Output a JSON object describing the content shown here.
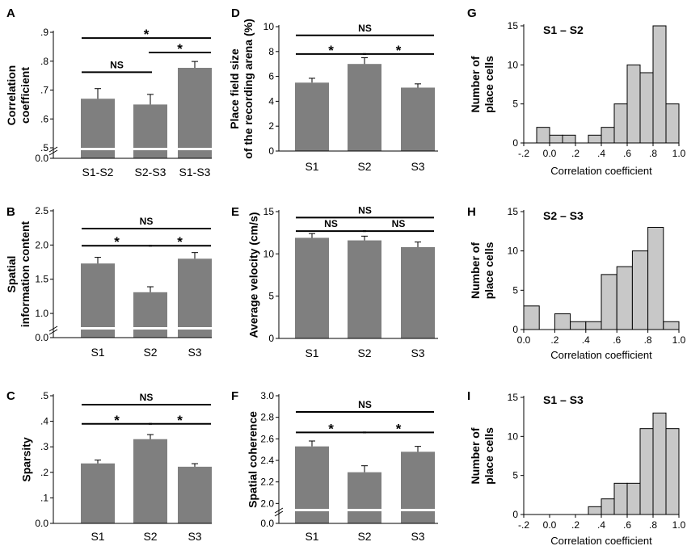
{
  "colors": {
    "bar": "#7f7f7f",
    "hist": "#c8c8c8",
    "axis": "#000000",
    "background": "#ffffff"
  },
  "chart_data": [
    {
      "id": "A",
      "type": "bar",
      "panel_label": "A",
      "ylabel": [
        "Correlation",
        "coefficient"
      ],
      "categories": [
        "S1-S2",
        "S2-S3",
        "S1-S3"
      ],
      "values": [
        0.67,
        0.65,
        0.777
      ],
      "errors": [
        0.035,
        0.035,
        0.022
      ],
      "ylim": [
        0.5,
        0.9
      ],
      "broken_axis": true,
      "break_base": "0.0",
      "yticks": [
        0.5,
        0.6,
        0.7,
        0.8,
        0.9
      ],
      "ytick_labels": [
        ".5",
        ".6",
        ".7",
        ".8",
        ".9"
      ],
      "significance": [
        {
          "from": 1,
          "to": 2,
          "label": "NS",
          "y": 0.762
        },
        {
          "from": 2,
          "to": 3,
          "label": "*",
          "y": 0.83
        },
        {
          "from": 1,
          "to": 3,
          "label": "*",
          "y": 0.88
        }
      ]
    },
    {
      "id": "B",
      "type": "bar",
      "panel_label": "B",
      "ylabel": [
        "Spatial",
        "information content"
      ],
      "categories": [
        "S1",
        "S2",
        "S3"
      ],
      "values": [
        1.73,
        1.31,
        1.8
      ],
      "errors": [
        0.09,
        0.08,
        0.09
      ],
      "ylim": [
        0.8,
        2.5
      ],
      "broken_axis": true,
      "break_base": "0.0",
      "yticks": [
        1.0,
        1.5,
        2.0,
        2.5
      ],
      "ytick_labels": [
        "1.0",
        "1.5",
        "2.0",
        "2.5"
      ],
      "significance": [
        {
          "from": 1,
          "to": 2,
          "label": "*",
          "y": 1.99
        },
        {
          "from": 2,
          "to": 3,
          "label": "*",
          "y": 1.99
        },
        {
          "from": 1,
          "to": 3,
          "label": "NS",
          "y": 2.24
        }
      ]
    },
    {
      "id": "C",
      "type": "bar",
      "panel_label": "C",
      "ylabel": [
        "Sparsity"
      ],
      "categories": [
        "S1",
        "S2",
        "S3"
      ],
      "values": [
        0.235,
        0.33,
        0.222
      ],
      "errors": [
        0.013,
        0.018,
        0.012
      ],
      "ylim": [
        0.0,
        0.5
      ],
      "broken_axis": false,
      "yticks": [
        0.0,
        0.1,
        0.2,
        0.3,
        0.4,
        0.5
      ],
      "ytick_labels": [
        "0.0",
        ".1",
        ".2",
        ".3",
        ".4",
        ".5"
      ],
      "significance": [
        {
          "from": 1,
          "to": 2,
          "label": "*",
          "y": 0.39
        },
        {
          "from": 2,
          "to": 3,
          "label": "*",
          "y": 0.39
        },
        {
          "from": 1,
          "to": 3,
          "label": "NS",
          "y": 0.465
        }
      ]
    },
    {
      "id": "D",
      "type": "bar",
      "panel_label": "D",
      "ylabel": [
        "Place field size",
        "of the recording arena (%)"
      ],
      "categories": [
        "S1",
        "S2",
        "S3"
      ],
      "values": [
        5.5,
        7.0,
        5.1
      ],
      "errors": [
        0.35,
        0.5,
        0.3
      ],
      "ylim": [
        0,
        10
      ],
      "broken_axis": false,
      "yticks": [
        0,
        2,
        4,
        6,
        8,
        10
      ],
      "ytick_labels": [
        "0",
        "2",
        "4",
        "6",
        "8",
        "10"
      ],
      "significance": [
        {
          "from": 1,
          "to": 2,
          "label": "*",
          "y": 7.8
        },
        {
          "from": 2,
          "to": 3,
          "label": "*",
          "y": 7.8
        },
        {
          "from": 1,
          "to": 3,
          "label": "NS",
          "y": 9.3
        }
      ]
    },
    {
      "id": "E",
      "type": "bar",
      "panel_label": "E",
      "ylabel": [
        "Average velocity (cm/s)"
      ],
      "categories": [
        "S1",
        "S2",
        "S3"
      ],
      "values": [
        11.9,
        11.6,
        10.8
      ],
      "errors": [
        0.5,
        0.5,
        0.6
      ],
      "ylim": [
        0,
        15
      ],
      "broken_axis": false,
      "yticks": [
        0,
        5,
        10,
        15
      ],
      "ytick_labels": [
        "0",
        "5",
        "10",
        "15"
      ],
      "significance": [
        {
          "from": 1,
          "to": 2,
          "label": "NS",
          "y": 12.7
        },
        {
          "from": 2,
          "to": 3,
          "label": "NS",
          "y": 12.7
        },
        {
          "from": 1,
          "to": 3,
          "label": "NS",
          "y": 14.3
        }
      ]
    },
    {
      "id": "F",
      "type": "bar",
      "panel_label": "F",
      "ylabel": [
        "Spatial coherence"
      ],
      "categories": [
        "S1",
        "S2",
        "S3"
      ],
      "values": [
        2.53,
        2.29,
        2.48
      ],
      "errors": [
        0.05,
        0.06,
        0.05
      ],
      "ylim": [
        1.95,
        3.0
      ],
      "broken_axis": true,
      "break_base": "0.0",
      "yticks": [
        2.0,
        2.2,
        2.4,
        2.6,
        2.8,
        3.0
      ],
      "ytick_labels": [
        "2.0",
        "2.2",
        "2.4",
        "2.6",
        "2.8",
        "3.0"
      ],
      "significance": [
        {
          "from": 1,
          "to": 2,
          "label": "*",
          "y": 2.66
        },
        {
          "from": 2,
          "to": 3,
          "label": "*",
          "y": 2.66
        },
        {
          "from": 1,
          "to": 3,
          "label": "NS",
          "y": 2.85
        }
      ]
    },
    {
      "id": "G",
      "type": "histogram",
      "panel_label": "G",
      "title": "S1 – S2",
      "xlabel": "Correlation coefficient",
      "ylabel": [
        "Number of",
        "place cells"
      ],
      "xlim": [
        -0.2,
        1.0
      ],
      "ylim": [
        0,
        15
      ],
      "bin_width": 0.1,
      "bins_start": [
        -0.1,
        0.0,
        0.1,
        0.2,
        0.3,
        0.4,
        0.5,
        0.6,
        0.7,
        0.8,
        0.9
      ],
      "counts": [
        2,
        1,
        1,
        0,
        1,
        2,
        5,
        10,
        9,
        15,
        5
      ],
      "xticks": [
        -0.2,
        0.0,
        0.2,
        0.4,
        0.6,
        0.8,
        1.0
      ],
      "xtick_labels": [
        "-.2",
        "0.0",
        ".2",
        ".4",
        ".6",
        ".8",
        "1.0"
      ],
      "yticks": [
        0,
        5,
        10,
        15
      ],
      "ytick_labels": [
        "0",
        "5",
        "10",
        "15"
      ]
    },
    {
      "id": "H",
      "type": "histogram",
      "panel_label": "H",
      "title": "S2 – S3",
      "xlabel": "Correlation coefficient",
      "ylabel": [
        "Number of",
        "place cells"
      ],
      "xlim": [
        0.0,
        1.0
      ],
      "ylim": [
        0,
        15
      ],
      "bin_width": 0.1,
      "bins_start": [
        0.0,
        0.1,
        0.2,
        0.3,
        0.4,
        0.5,
        0.6,
        0.7,
        0.8,
        0.9
      ],
      "counts": [
        3,
        0,
        2,
        1,
        1,
        7,
        8,
        10,
        13,
        1
      ],
      "xticks": [
        0.0,
        0.2,
        0.4,
        0.6,
        0.8,
        1.0
      ],
      "xtick_labels": [
        "0.0",
        ".2",
        ".4",
        ".6",
        ".8",
        "1.0"
      ],
      "yticks": [
        0,
        5,
        10,
        15
      ],
      "ytick_labels": [
        "0",
        "5",
        "10",
        "15"
      ]
    },
    {
      "id": "I",
      "type": "histogram",
      "panel_label": "I",
      "title": "S1 – S3",
      "xlabel": "Correlation coefficient",
      "ylabel": [
        "Number of",
        "place cells"
      ],
      "xlim": [
        -0.2,
        1.0
      ],
      "ylim": [
        0,
        15
      ],
      "bin_width": 0.1,
      "bins_start": [
        0.3,
        0.4,
        0.5,
        0.6,
        0.7,
        0.8,
        0.9
      ],
      "counts": [
        1,
        2,
        4,
        4,
        11,
        13,
        11
      ],
      "xticks": [
        -0.2,
        0.0,
        0.2,
        0.4,
        0.6,
        0.8,
        1.0
      ],
      "xtick_labels": [
        "-.2",
        "0.0",
        ".2",
        ".4",
        ".6",
        ".8",
        "1.0"
      ],
      "yticks": [
        0,
        5,
        10,
        15
      ],
      "ytick_labels": [
        "0",
        "5",
        "10",
        "15"
      ]
    }
  ]
}
